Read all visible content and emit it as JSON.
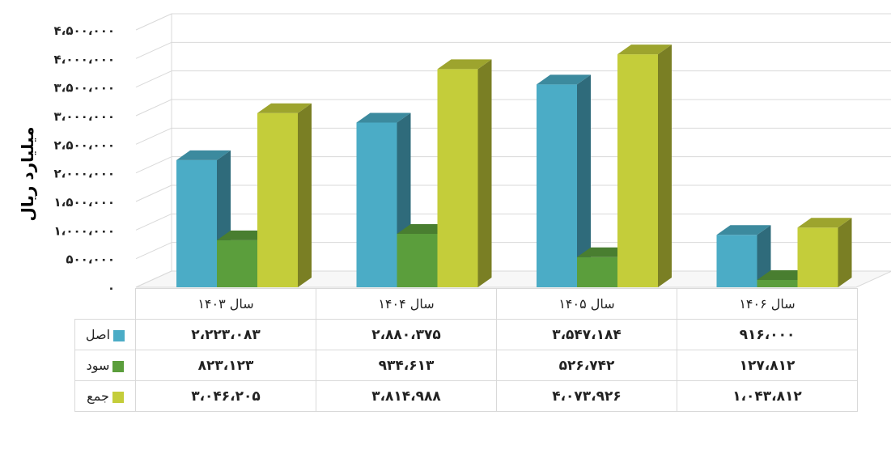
{
  "chart_data": {
    "type": "bar",
    "ylabel": "میلیارد ریال",
    "ylim": [
      0,
      4500000
    ],
    "ytick_labels": [
      "۰",
      "۵۰۰،۰۰۰",
      "۱،۰۰۰،۰۰۰",
      "۱،۵۰۰،۰۰۰",
      "۲،۰۰۰،۰۰۰",
      "۲،۵۰۰،۰۰۰",
      "۳،۰۰۰،۰۰۰",
      "۳،۵۰۰،۰۰۰",
      "۴،۰۰۰،۰۰۰",
      "۴،۵۰۰،۰۰۰"
    ],
    "grid": true,
    "legend": "table",
    "categories": [
      "سال ۱۴۰۳",
      "سال ۱۴۰۴",
      "سال ۱۴۰۵",
      "سال ۱۴۰۶"
    ],
    "series": [
      {
        "name": "اصل",
        "color": "#4bacc6",
        "values": [
          2223083,
          2880375,
          3547184,
          916000
        ],
        "labels": [
          "۲،۲۲۳،۰۸۳",
          "۲،۸۸۰،۳۷۵",
          "۳،۵۴۷،۱۸۴",
          "۹۱۶،۰۰۰"
        ]
      },
      {
        "name": "سود",
        "color": "#5b9e3c",
        "values": [
          823123,
          934613,
          526742,
          127812
        ],
        "labels": [
          "۸۲۳،۱۲۳",
          "۹۳۴،۶۱۳",
          "۵۲۶،۷۴۲",
          "۱۲۷،۸۱۲"
        ]
      },
      {
        "name": "جمع",
        "color": "#c4cd3a",
        "values": [
          3046205,
          3814988,
          4073926,
          1043812
        ],
        "labels": [
          "۳،۰۴۶،۲۰۵",
          "۳،۸۱۴،۹۸۸",
          "۴،۰۷۳،۹۲۶",
          "۱،۰۴۳،۸۱۲"
        ]
      }
    ]
  }
}
